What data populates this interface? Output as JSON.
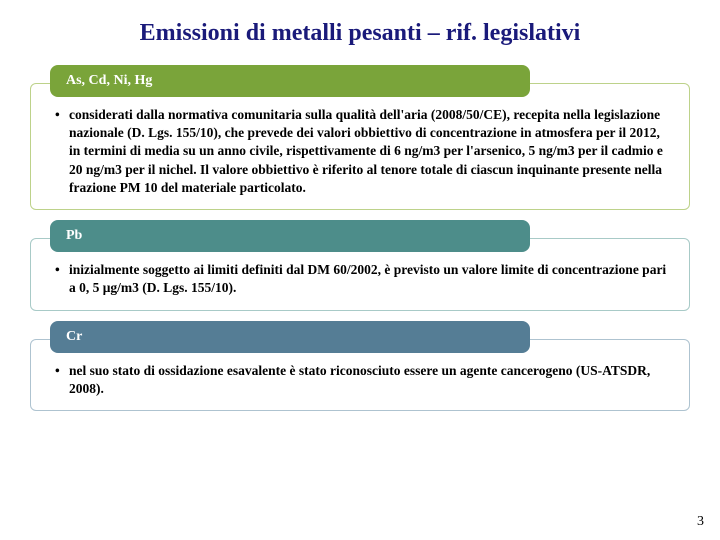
{
  "title": "Emissioni di metalli pesanti – rif. legislativi",
  "sections": [
    {
      "badge_label": "As, Cd, Ni, Hg",
      "badge_bg": "#7aa43a",
      "box_border": "#bdd28a",
      "bullet_text": "considerati dalla normativa comunitaria sulla qualità dell'aria (2008/50/CE), recepita nella legislazione nazionale (D. Lgs. 155/10), che prevede dei valori obbiettivo di concentrazione in atmosfera per il 2012, in termini di media su un anno civile, rispettivamente di 6 ng/m3 per l'arsenico, 5 ng/m3 per il cadmio e 20 ng/m3 per il nichel. Il valore obbiettivo è riferito al tenore totale di ciascun inquinante presente nella frazione PM 10 del materiale particolato."
    },
    {
      "badge_label": "Pb",
      "badge_bg": "#4d8d8a",
      "box_border": "#a8cac7",
      "bullet_text": "inizialmente soggetto ai limiti definiti dal DM 60/2002, è previsto un valore limite di concentrazione pari a 0, 5 μg/m3 (D. Lgs. 155/10)."
    },
    {
      "badge_label": "Cr",
      "badge_bg": "#557d95",
      "box_border": "#aec3d0",
      "bullet_text": "nel suo stato di ossidazione esavalente è stato riconosciuto essere un agente cancerogeno (US-ATSDR, 2008)."
    }
  ],
  "page_number": "3"
}
